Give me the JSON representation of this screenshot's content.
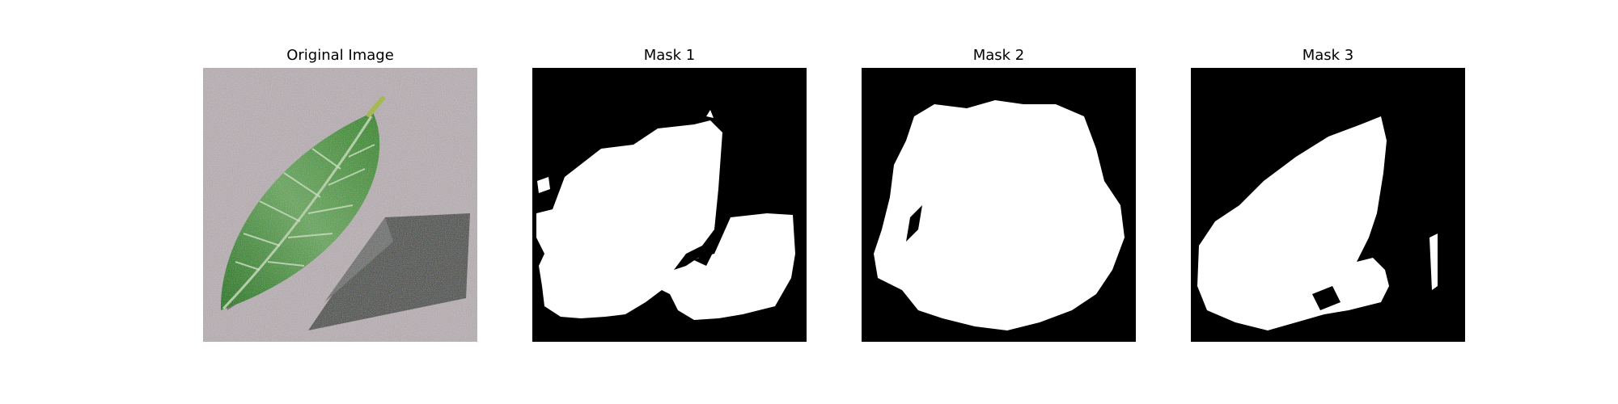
{
  "figure": {
    "panels": [
      {
        "title": "Original Image",
        "kind": "photo",
        "description_colors": {
          "background": "#b8b0b4",
          "leaf": "#3f8a35",
          "shadow": "#5a5a5a"
        }
      },
      {
        "title": "Mask 1",
        "kind": "mask"
      },
      {
        "title": "Mask 2",
        "kind": "mask"
      },
      {
        "title": "Mask 3",
        "kind": "mask"
      }
    ],
    "colors": {
      "mask_background": "#000000",
      "mask_foreground": "#ffffff"
    }
  }
}
